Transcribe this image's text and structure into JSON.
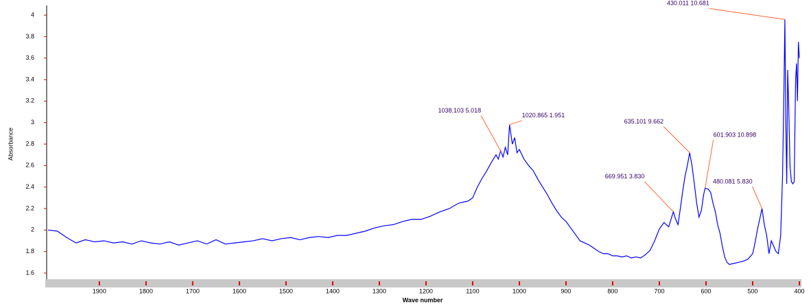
{
  "chart_data": {
    "type": "line",
    "xlabel": "Wave number",
    "ylabel": "Absorbance",
    "xlim": [
      2010,
      400
    ],
    "ylim": [
      1.555,
      4.077
    ],
    "xticks": [
      1900,
      1800,
      1700,
      1600,
      1500,
      1400,
      1300,
      1200,
      1100,
      1000,
      900,
      800,
      700,
      600,
      500,
      400
    ],
    "yticks": [
      1.6,
      1.8,
      2.0,
      2.2,
      2.4,
      2.6,
      2.8,
      3.0,
      3.2,
      3.4,
      3.6,
      3.8,
      4.0
    ],
    "x": [
      2010,
      1990,
      1970,
      1950,
      1930,
      1910,
      1890,
      1870,
      1850,
      1830,
      1810,
      1790,
      1770,
      1750,
      1730,
      1710,
      1690,
      1670,
      1650,
      1630,
      1610,
      1590,
      1570,
      1550,
      1530,
      1510,
      1490,
      1470,
      1450,
      1430,
      1410,
      1390,
      1370,
      1350,
      1330,
      1310,
      1290,
      1270,
      1250,
      1230,
      1210,
      1190,
      1170,
      1150,
      1130,
      1110,
      1100,
      1090,
      1080,
      1070,
      1060,
      1050,
      1045,
      1040,
      1035,
      1030,
      1025,
      1021,
      1015,
      1010,
      1005,
      1000,
      990,
      980,
      970,
      960,
      950,
      940,
      930,
      920,
      910,
      900,
      890,
      880,
      870,
      860,
      850,
      840,
      830,
      820,
      810,
      800,
      790,
      780,
      770,
      760,
      750,
      740,
      730,
      720,
      710,
      700,
      690,
      685,
      680,
      675,
      670,
      665,
      660,
      655,
      650,
      645,
      640,
      635,
      630,
      625,
      620,
      615,
      610,
      605,
      602,
      595,
      590,
      585,
      580,
      575,
      570,
      565,
      560,
      555,
      550,
      540,
      530,
      520,
      510,
      500,
      495,
      490,
      485,
      480,
      475,
      470,
      465,
      460,
      455,
      450,
      445,
      440,
      436,
      433,
      431,
      429,
      427,
      425,
      423,
      420,
      417,
      414,
      411,
      408,
      406,
      404,
      402,
      400
    ],
    "series": [
      {
        "color": "#0000ff",
        "values": [
          2.0,
          1.99,
          1.93,
          1.88,
          1.91,
          1.89,
          1.9,
          1.88,
          1.89,
          1.87,
          1.9,
          1.88,
          1.87,
          1.89,
          1.86,
          1.88,
          1.9,
          1.87,
          1.91,
          1.87,
          1.88,
          1.89,
          1.9,
          1.92,
          1.9,
          1.92,
          1.93,
          1.91,
          1.93,
          1.94,
          1.93,
          1.95,
          1.95,
          1.97,
          1.99,
          2.02,
          2.04,
          2.05,
          2.08,
          2.1,
          2.1,
          2.13,
          2.17,
          2.2,
          2.25,
          2.27,
          2.3,
          2.4,
          2.48,
          2.55,
          2.63,
          2.7,
          2.66,
          2.74,
          2.68,
          2.77,
          2.7,
          2.98,
          2.8,
          2.86,
          2.72,
          2.75,
          2.66,
          2.6,
          2.55,
          2.47,
          2.4,
          2.33,
          2.25,
          2.18,
          2.12,
          2.08,
          2.02,
          1.96,
          1.9,
          1.88,
          1.86,
          1.83,
          1.8,
          1.78,
          1.78,
          1.76,
          1.76,
          1.75,
          1.76,
          1.74,
          1.75,
          1.74,
          1.77,
          1.81,
          1.9,
          2.01,
          2.07,
          2.05,
          2.03,
          2.1,
          2.17,
          2.1,
          2.05,
          2.2,
          2.36,
          2.5,
          2.6,
          2.72,
          2.6,
          2.43,
          2.25,
          2.12,
          2.18,
          2.33,
          2.39,
          2.38,
          2.35,
          2.25,
          2.17,
          2.05,
          1.97,
          1.85,
          1.75,
          1.7,
          1.68,
          1.69,
          1.7,
          1.71,
          1.73,
          1.78,
          1.88,
          2.0,
          2.1,
          2.2,
          2.05,
          1.95,
          1.78,
          1.9,
          1.85,
          1.8,
          1.78,
          1.95,
          2.5,
          3.3,
          3.96,
          3.0,
          2.43,
          3.49,
          3.2,
          2.6,
          2.45,
          2.43,
          2.45,
          3.4,
          3.55,
          3.2,
          3.75,
          3.6
        ]
      }
    ],
    "annotations": [
      {
        "text": "1038.103  5.018",
        "x": 1038,
        "y": 2.72
      },
      {
        "text": "1020.865  1.951",
        "x": 1021,
        "y": 2.98
      },
      {
        "text": "635.101  9.662",
        "x": 635,
        "y": 2.72
      },
      {
        "text": "601.903  10.898",
        "x": 602,
        "y": 2.39
      },
      {
        "text": "669.951  3.830",
        "x": 670,
        "y": 2.17
      },
      {
        "text": "480.081  5.830",
        "x": 480,
        "y": 2.2
      },
      {
        "text": "430.011  10.681",
        "x": 431,
        "y": 3.96
      }
    ]
  }
}
